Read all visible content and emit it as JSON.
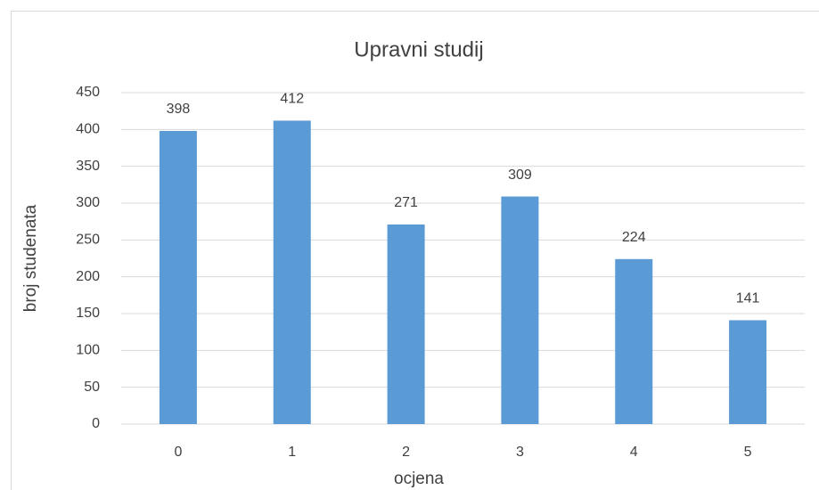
{
  "chart_data": {
    "type": "bar",
    "title": "Upravni studij",
    "x_label": "ocjena",
    "y_label": "broj studenata",
    "categories": [
      "0",
      "1",
      "2",
      "3",
      "4",
      "5"
    ],
    "values": [
      398,
      412,
      271,
      309,
      224,
      141
    ],
    "color": "#5b9bd5",
    "ylim": [
      0,
      450
    ],
    "yticks": [
      0,
      50,
      100,
      150,
      200,
      250,
      300,
      350,
      400,
      450
    ],
    "grid": true,
    "data_labels": true
  }
}
